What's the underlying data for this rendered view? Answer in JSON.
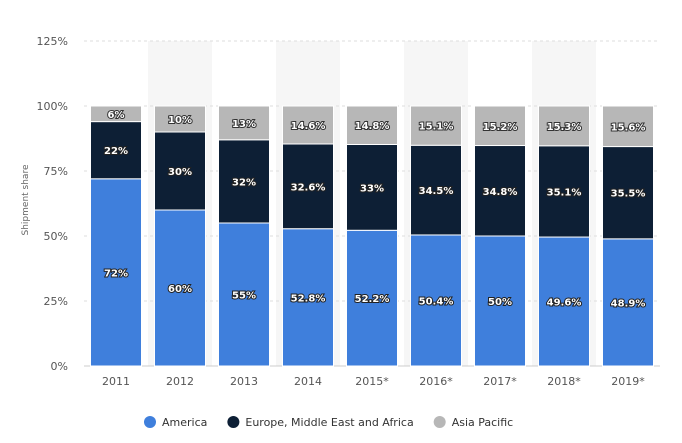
{
  "chart_data": {
    "type": "bar",
    "stacked": true,
    "categories": [
      "2011",
      "2012",
      "2013",
      "2014",
      "2015*",
      "2016*",
      "2017*",
      "2018*",
      "2019*"
    ],
    "series": [
      {
        "name": "America",
        "color": "#3f7fdc",
        "values": [
          72,
          60,
          55,
          52.8,
          52.2,
          50.4,
          50,
          49.6,
          48.9
        ],
        "labels": [
          "72%",
          "60%",
          "55%",
          "52.8%",
          "52.2%",
          "50.4%",
          "50%",
          "49.6%",
          "48.9%"
        ]
      },
      {
        "name": "Europe, Middle East and Africa",
        "color": "#0d1f35",
        "values": [
          22,
          30,
          32,
          32.6,
          33,
          34.5,
          34.8,
          35.1,
          35.5
        ],
        "labels": [
          "22%",
          "30%",
          "32%",
          "32.6%",
          "33%",
          "34.5%",
          "34.8%",
          "35.1%",
          "35.5%"
        ]
      },
      {
        "name": "Asia Pacific",
        "color": "#b7b7b7",
        "values": [
          6,
          10,
          13,
          14.6,
          14.8,
          15.1,
          15.2,
          15.3,
          15.6
        ],
        "labels": [
          "6%",
          "10%",
          "13%",
          "14.6%",
          "14.8%",
          "15.1%",
          "15.2%",
          "15.3%",
          "15.6%"
        ]
      }
    ],
    "ylabel": "Shipment share",
    "ylim": [
      0,
      125
    ],
    "yticks": [
      "0%",
      "25%",
      "50%",
      "75%",
      "100%",
      "125%"
    ],
    "grid": true,
    "legend_position": "bottom-center"
  }
}
